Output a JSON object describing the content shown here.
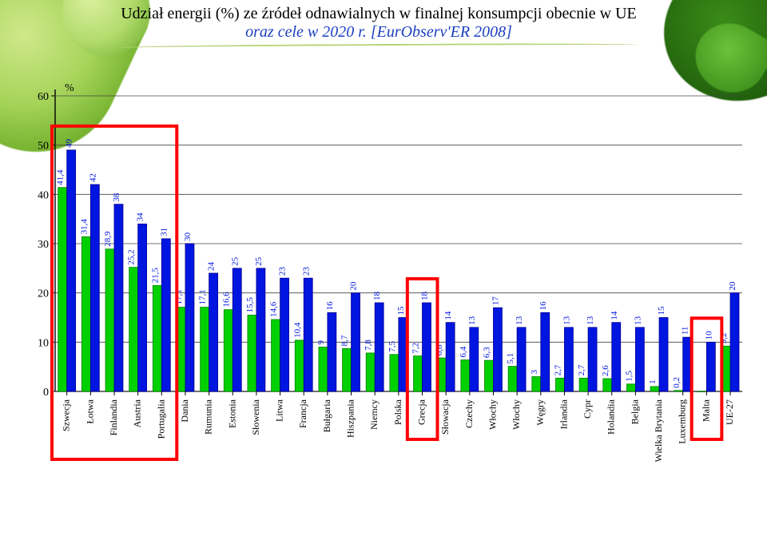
{
  "title": {
    "line1": "Udział energii (%) ze źródeł odnawialnych w finalnej konsumpcji obecnie w UE",
    "line2": "oraz cele w 2020 r. ",
    "source": "[EurObserv'ER 2008]"
  },
  "chart": {
    "type": "grouped-bar",
    "y_axis": {
      "label": "%",
      "min": 0,
      "max": 60,
      "tick_step": 10,
      "label_fontsize": 14,
      "tick_fontsize": 14
    },
    "grid_color": "#444444",
    "background_color": "#ffffff",
    "bar_colors": {
      "current": "#00d000",
      "target": "#0015e0"
    },
    "value_label": {
      "color": "#0015e0",
      "fontsize": 11,
      "rotation": -90
    },
    "xtick": {
      "fontsize": 12,
      "rotation": -90
    },
    "group_gap": 0.25,
    "bar_width_ratio": 0.37,
    "highlight": {
      "stroke": "#ff0000",
      "stroke_width": 4,
      "groups": [
        [
          0,
          4
        ],
        [
          15,
          15
        ],
        [
          27,
          27
        ]
      ]
    },
    "countries": [
      {
        "name": "Szwecja",
        "current": 41.4,
        "target": 49
      },
      {
        "name": "Łotwa",
        "current": 31.4,
        "target": 42
      },
      {
        "name": "Finlandia",
        "current": 28.9,
        "target": 38
      },
      {
        "name": "Austria",
        "current": 25.2,
        "target": 34
      },
      {
        "name": "Portugalia",
        "current": 21.5,
        "target": 31
      },
      {
        "name": "Dania",
        "current": 17.1,
        "target": 30
      },
      {
        "name": "Rumunia",
        "current": 17.1,
        "target": 24
      },
      {
        "name": "Estonia",
        "current": 16.6,
        "target": 25
      },
      {
        "name": "Słowenia",
        "current": 15.5,
        "target": 25
      },
      {
        "name": "Litwa",
        "current": 14.6,
        "target": 23
      },
      {
        "name": "Francja",
        "current": 10.4,
        "target": 23
      },
      {
        "name": "Bułgaria",
        "current": 9.0,
        "target": 16
      },
      {
        "name": "Hiszpania",
        "current": 8.7,
        "target": 20
      },
      {
        "name": "Niemcy",
        "current": 7.8,
        "target": 18
      },
      {
        "name": "Polska",
        "current": 7.5,
        "target": 15
      },
      {
        "name": "Grecja",
        "current": 7.2,
        "target": 18
      },
      {
        "name": "Słowacja",
        "current": 6.8,
        "target": 14
      },
      {
        "name": "Czechy",
        "current": 6.4,
        "target": 13
      },
      {
        "name": "Włochy",
        "current": 6.3,
        "target": 17
      },
      {
        "name": "Włochy",
        "current": 5.1,
        "target": 13
      },
      {
        "name": "Węgry",
        "current": 3.0,
        "target": 16
      },
      {
        "name": "Irlandia",
        "current": 2.7,
        "target": 13
      },
      {
        "name": "Cypr",
        "current": 2.7,
        "target": 13
      },
      {
        "name": "Holandia",
        "current": 2.6,
        "target": 14
      },
      {
        "name": "Belgia",
        "current": 1.5,
        "target": 13
      },
      {
        "name": "Wielka Brytania",
        "current": 1.0,
        "target": 15
      },
      {
        "name": "Luxemburg",
        "current": 0.2,
        "target": 11
      },
      {
        "name": "Malta",
        "current": 0,
        "target": 10
      },
      {
        "name": "UE-27",
        "current": 9.2,
        "target": 20
      }
    ]
  }
}
